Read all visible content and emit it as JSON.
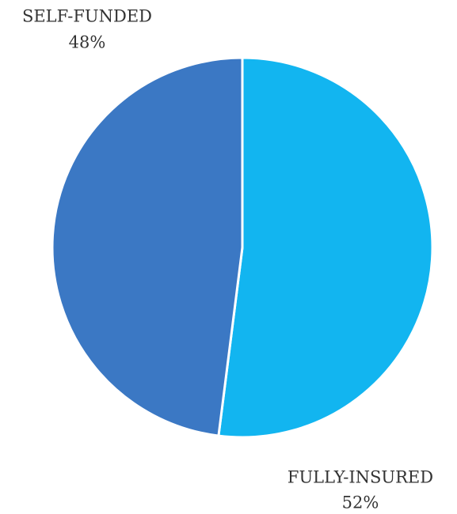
{
  "chart_data": {
    "type": "pie",
    "categories": [
      "FULLY-INSURED",
      "SELF-FUNDED"
    ],
    "values": [
      52,
      48
    ],
    "value_labels": [
      "52%",
      "48%"
    ],
    "colors": [
      "#12b5f0",
      "#3b78c4"
    ]
  }
}
